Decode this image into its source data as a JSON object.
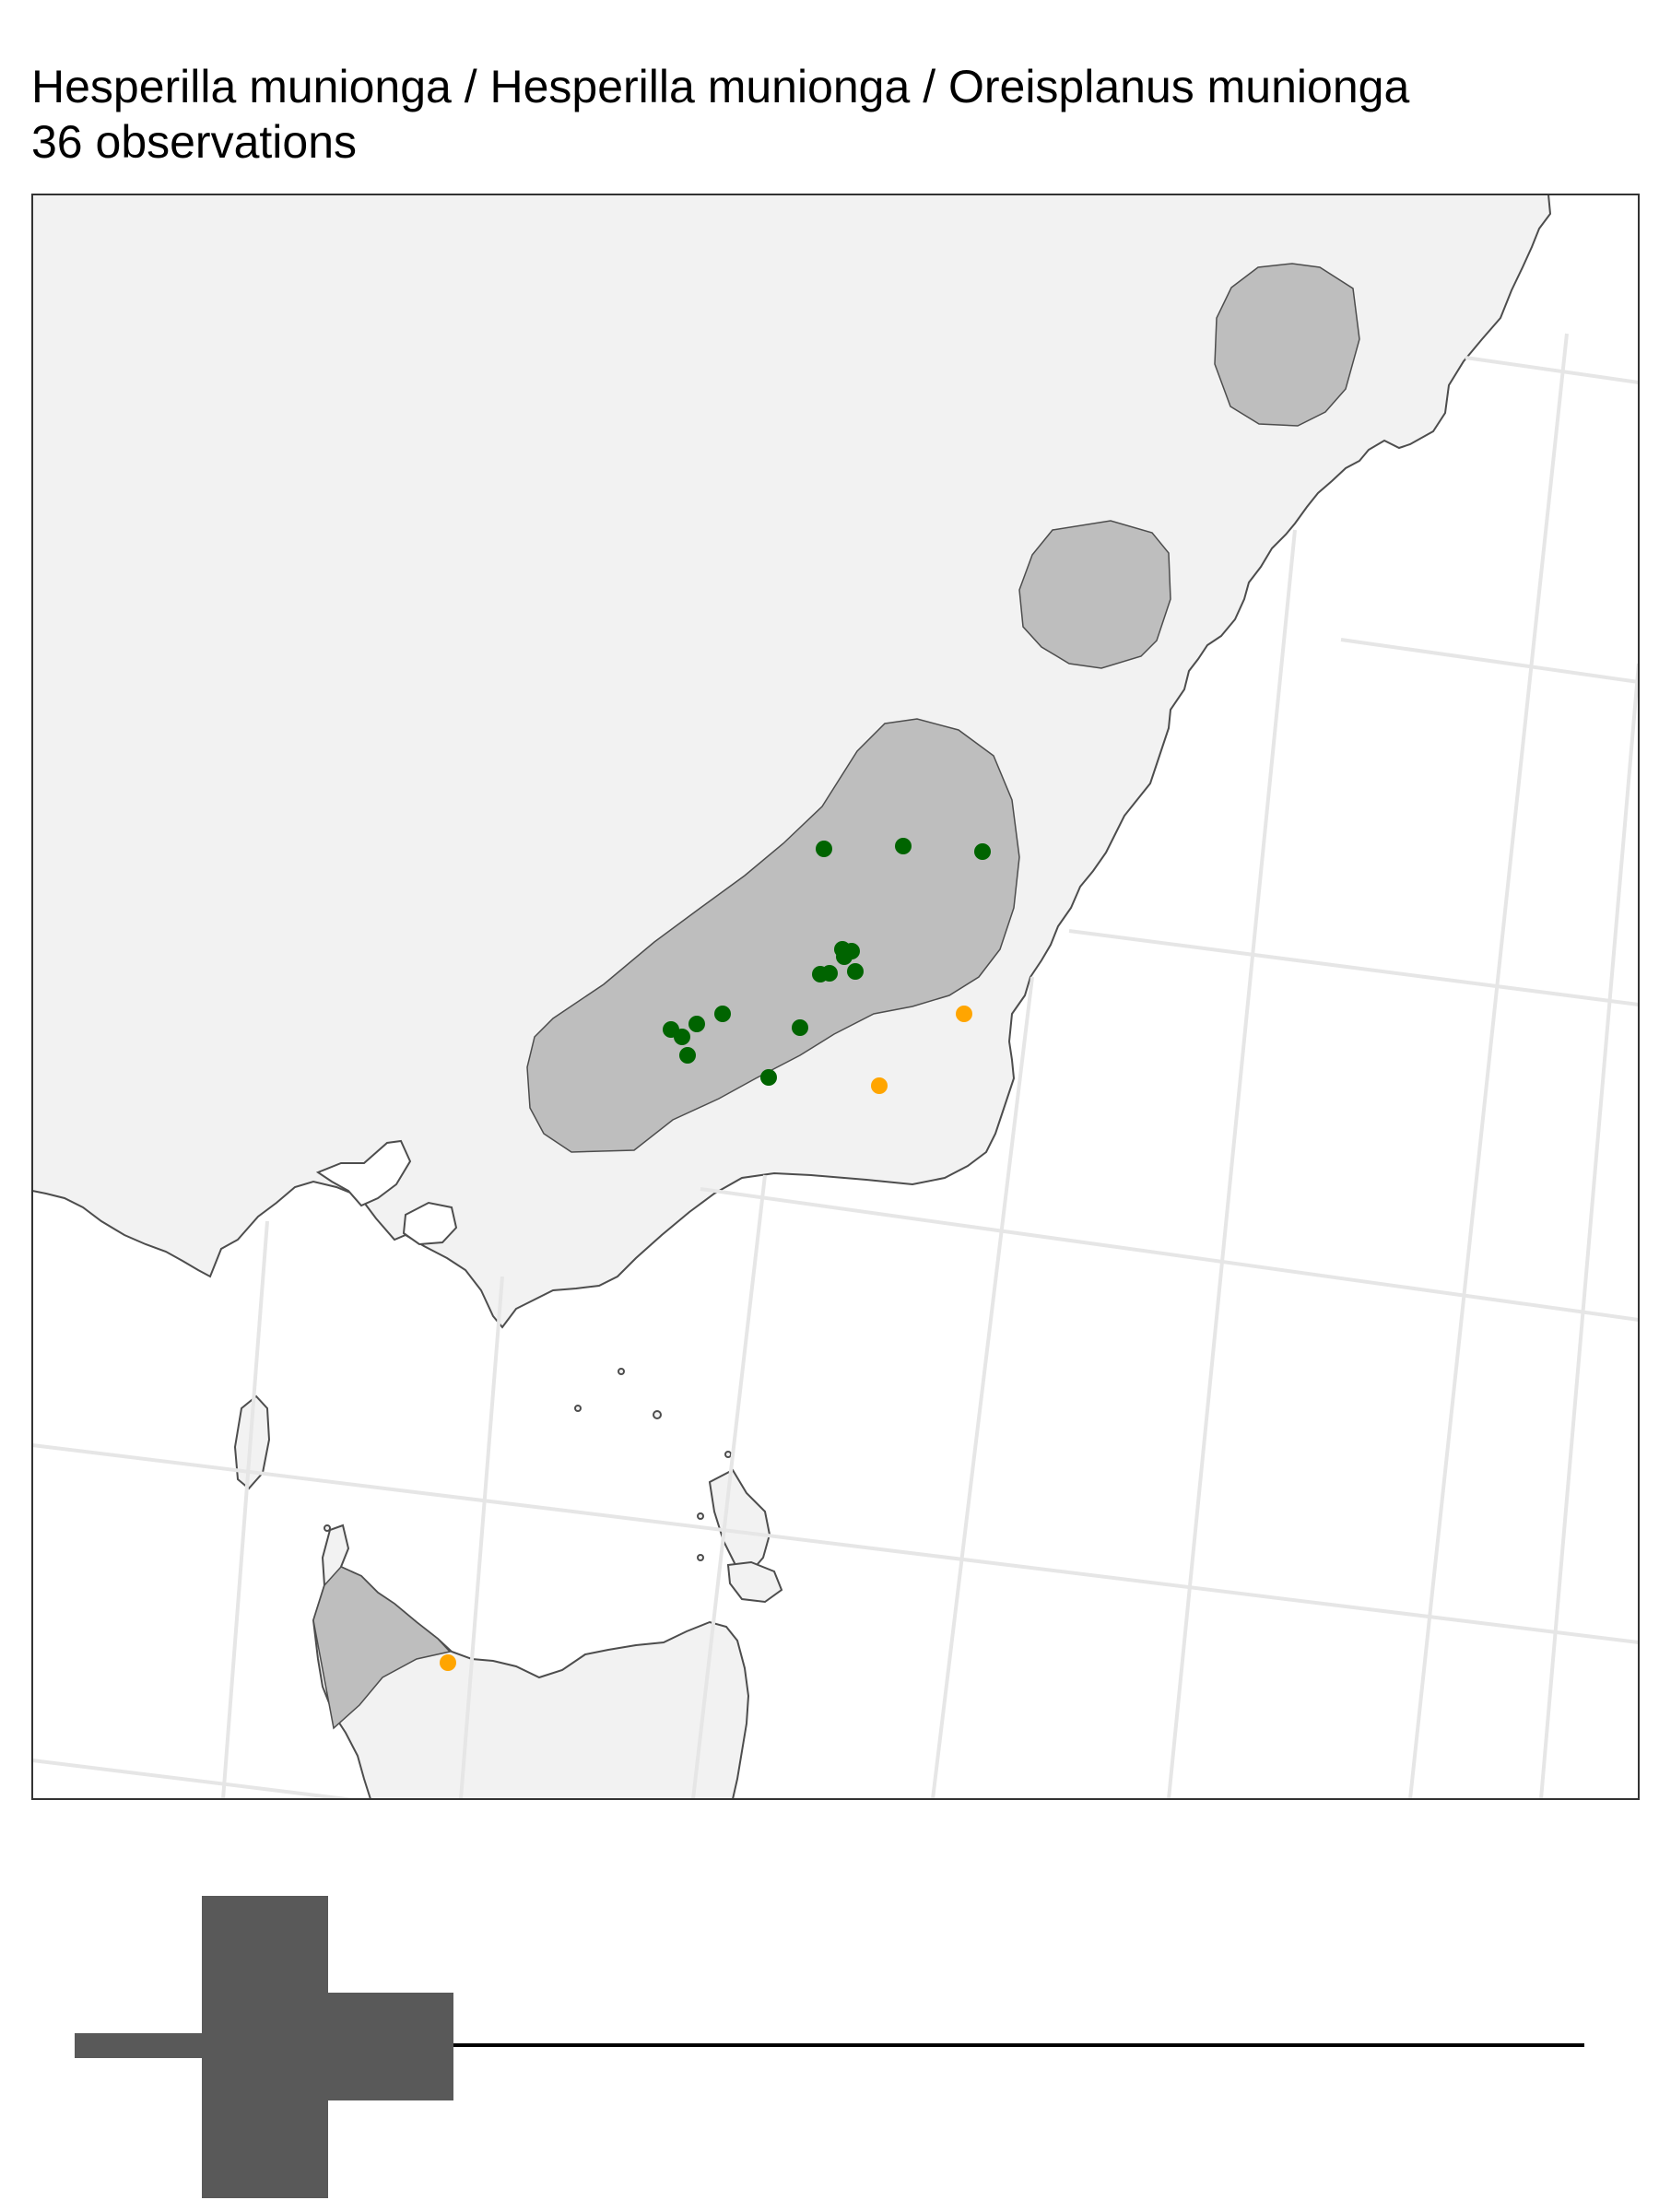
{
  "title": "Hesperilla munionga / Hesperilla munionga / Oreisplanus munionga",
  "subtitle": "36 observations",
  "colors": {
    "land": "#f2f2f2",
    "range": "#bebebe",
    "coast": "#4d4d4d",
    "graticule": "#e6e6e6",
    "observation_green": "#006400",
    "observation_orange": "#ffa500",
    "histogram_bar": "#595959",
    "histogram_line": "#000000"
  },
  "map": {
    "range_polygons": [
      "range-region-northeast",
      "range-region-central",
      "range-region-main",
      "range-region-tasmania"
    ],
    "observations_green_count": 16,
    "observations_orange_count": 3
  }
}
